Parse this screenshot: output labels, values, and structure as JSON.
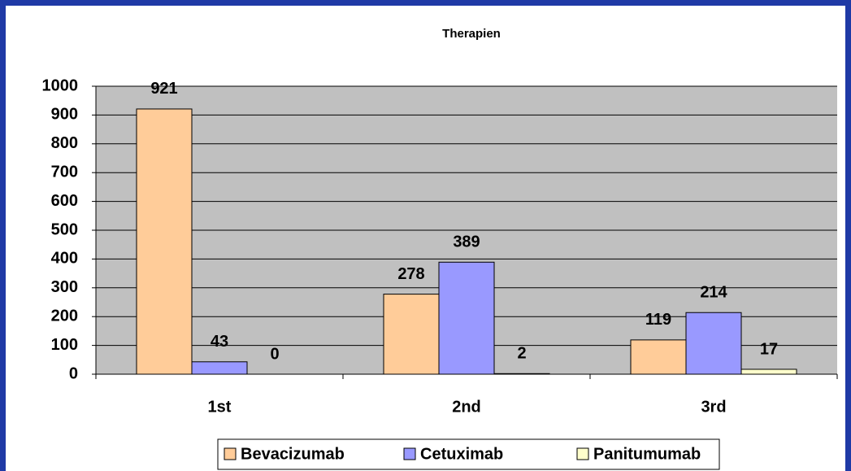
{
  "chart_data": {
    "type": "bar",
    "title": "Therapien",
    "categories": [
      "1st",
      "2nd",
      "3rd"
    ],
    "series": [
      {
        "name": "Bevacizumab",
        "color": "#ffcc99",
        "values": [
          921,
          278,
          119
        ]
      },
      {
        "name": "Cetuximab",
        "color": "#9999ff",
        "values": [
          43,
          389,
          214
        ]
      },
      {
        "name": "Panitumumab",
        "color": "#ffffcc",
        "values": [
          0,
          2,
          17
        ]
      }
    ],
    "ylim": [
      0,
      1000
    ],
    "yticks": [
      0,
      100,
      200,
      300,
      400,
      500,
      600,
      700,
      800,
      900,
      1000
    ],
    "grid": true,
    "legend": "bottom"
  }
}
